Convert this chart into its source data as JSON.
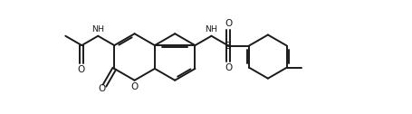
{
  "bg_color": "#ffffff",
  "line_color": "#1a1a1a",
  "line_width": 1.4,
  "figsize": [
    4.55,
    1.26
  ],
  "dpi": 100,
  "xlim": [
    0,
    9.5
  ],
  "ylim": [
    0,
    3.0
  ]
}
